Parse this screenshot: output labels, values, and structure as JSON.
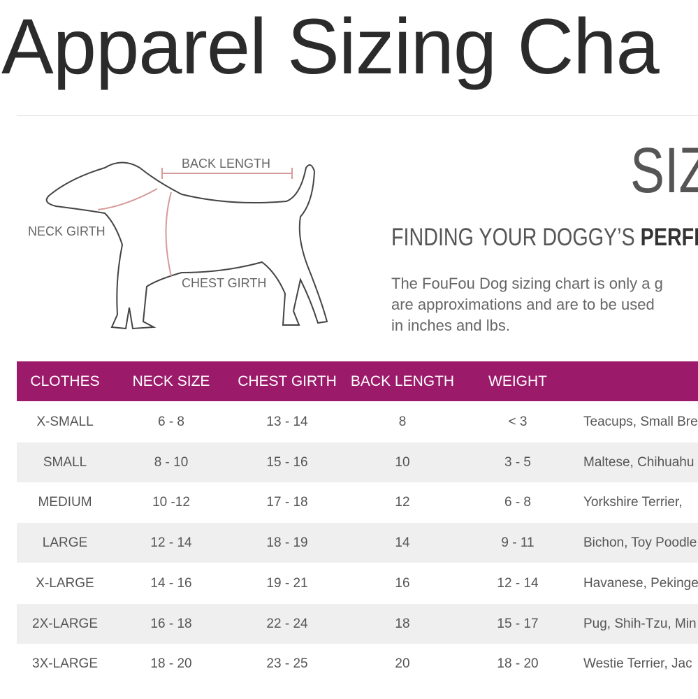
{
  "header": {
    "title": "Apparel Sizing Cha"
  },
  "diagram": {
    "labels": {
      "back": "BACK LENGTH",
      "neck": "NECK GIRTH",
      "chest": "CHEST GIRTH"
    }
  },
  "intro": {
    "heading": "SIZ",
    "subheading_regular": "FINDING YOUR DOGGY’S ",
    "subheading_bold": "PERFE",
    "lines": [
      "The FouFou Dog sizing chart is only a g",
      "are approximations and are to be used",
      "in inches and lbs."
    ]
  },
  "table": {
    "columns": [
      "CLOTHES",
      "NECK SIZE",
      "CHEST GIRTH",
      "BACK LENGTH",
      "WEIGHT"
    ],
    "rows": [
      [
        "X-SMALL",
        "6 - 8",
        "13 - 14",
        "8",
        "< 3",
        "Teacups, Small Bre"
      ],
      [
        "SMALL",
        "8 - 10",
        "15 - 16",
        "10",
        "3 - 5",
        "Maltese, Chihuahu"
      ],
      [
        "MEDIUM",
        "10 -12",
        "17 - 18",
        "12",
        "6 - 8",
        "Yorkshire Terrier, "
      ],
      [
        "LARGE",
        "12 - 14",
        "18 - 19",
        "14",
        "9 - 11",
        "Bichon, Toy Poodle"
      ],
      [
        "X-LARGE",
        "14 - 16",
        "19 - 21",
        "16",
        "12 - 14",
        "Havanese, Pekinge"
      ],
      [
        "2X-LARGE",
        "16 - 18",
        "22 - 24",
        "18",
        "15 - 17",
        "Pug, Shih-Tzu, Min"
      ],
      [
        "3X-LARGE",
        "18 - 20",
        "23 - 25",
        "20",
        "18 - 20",
        "Westie Terrier, Jac"
      ]
    ]
  }
}
